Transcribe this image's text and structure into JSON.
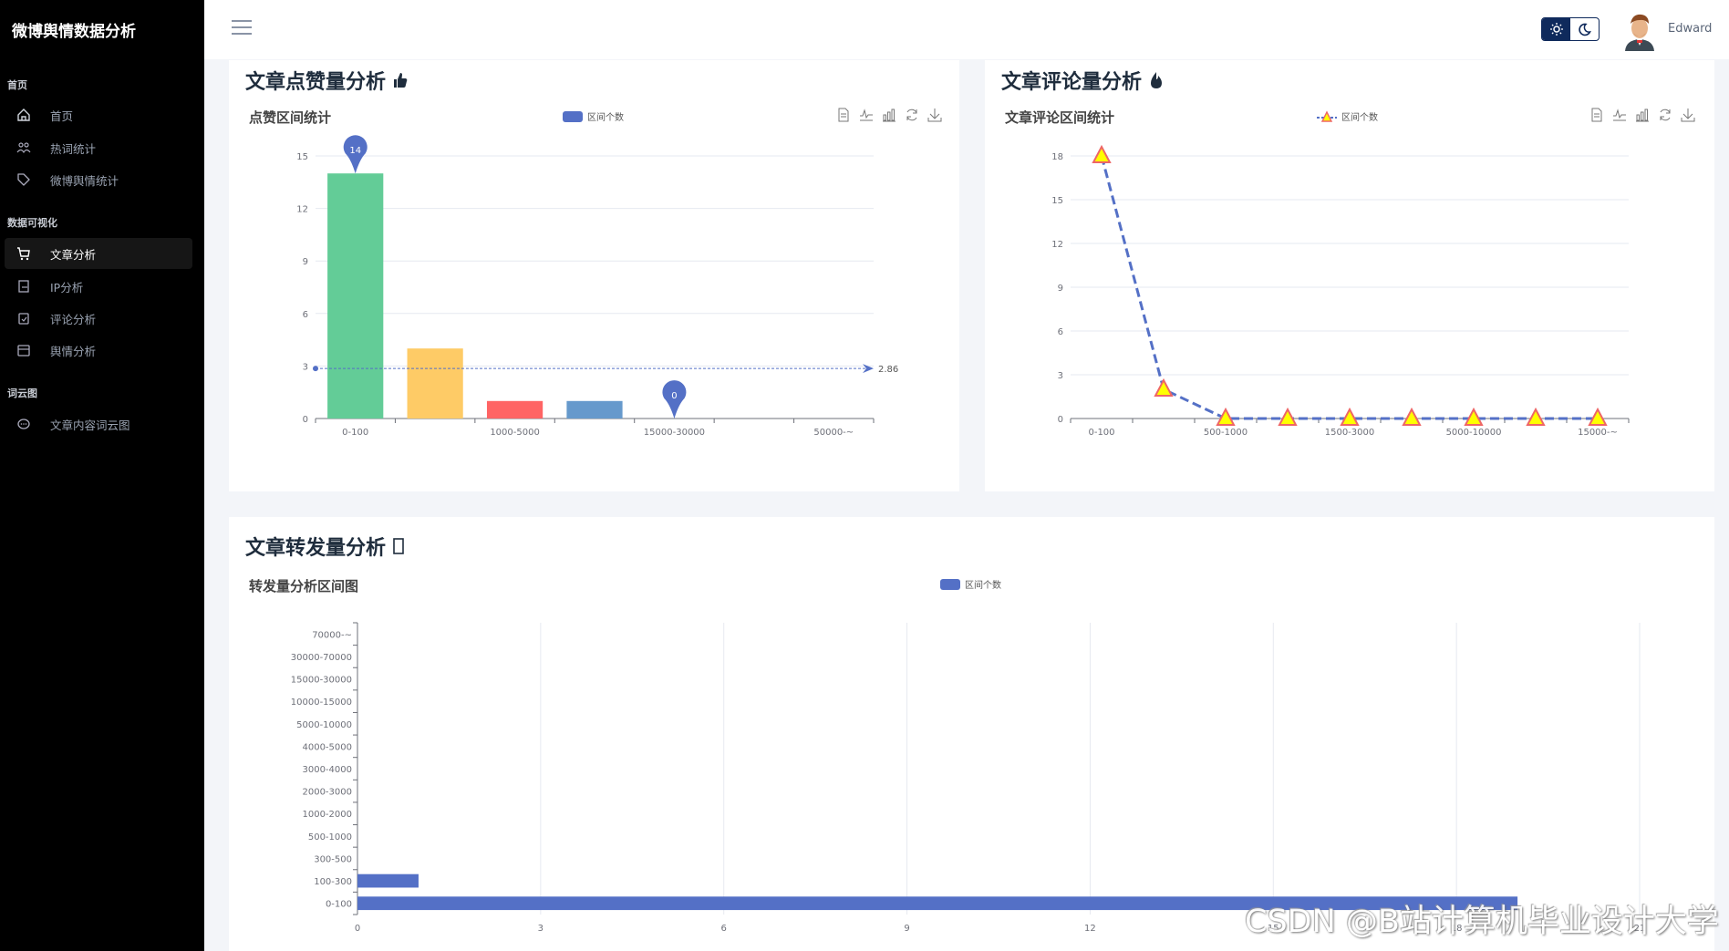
{
  "sidebar": {
    "brand": "微博舆情数据分析",
    "sections": [
      {
        "title": "首页",
        "items": [
          {
            "label": "首页",
            "icon": "home-icon"
          },
          {
            "label": "热词统计",
            "icon": "users-icon"
          },
          {
            "label": "微博舆情统计",
            "icon": "tag-icon"
          }
        ]
      },
      {
        "title": "数据可视化",
        "items": [
          {
            "label": "文章分析",
            "icon": "cart-icon",
            "active": true
          },
          {
            "label": "IP分析",
            "icon": "clipboard-icon"
          },
          {
            "label": "评论分析",
            "icon": "clipboard-check-icon"
          },
          {
            "label": "舆情分析",
            "icon": "calendar-icon"
          }
        ]
      },
      {
        "title": "词云图",
        "items": [
          {
            "label": "文章内容词云图",
            "icon": "chat-icon"
          }
        ]
      }
    ]
  },
  "header": {
    "user_name": "Edward",
    "theme": "light"
  },
  "cards": {
    "likes": {
      "title": "文章点赞量分析",
      "icon": "thumbs-up-icon"
    },
    "comments": {
      "title": "文章评论量分析",
      "icon": "fire-icon"
    },
    "reposts": {
      "title": "文章转发量分析",
      "icon": "missing-glyph-icon"
    }
  },
  "toolbox": [
    "data-view-icon",
    "line-chart-icon",
    "bar-chart-icon",
    "restore-icon",
    "download-icon"
  ],
  "watermark": "CSDN @B站计算机毕业设计大学",
  "chart_data": [
    {
      "type": "bar",
      "title": "点赞区间统计",
      "legend": "区间个数",
      "categories": [
        "0-100",
        "",
        "1000-5000",
        "",
        "15000-30000",
        "",
        "50000-~"
      ],
      "values": [
        14,
        4,
        1,
        1,
        0,
        0,
        0
      ],
      "colors": [
        "#63cc97",
        "#fecb66",
        "#ff6464",
        "#6699cc",
        "#5470c6",
        "#5470c6",
        "#5470c6"
      ],
      "ylim": [
        0,
        15
      ],
      "yticks": [
        0,
        3,
        6,
        9,
        12,
        15
      ],
      "mark_points": [
        {
          "label": "14",
          "category": "0-100",
          "value": 14
        },
        {
          "label": "0",
          "category": "15000-30000",
          "value": 0
        }
      ],
      "mark_line": {
        "label": "2.86",
        "value": 2.86
      },
      "grid": true
    },
    {
      "type": "line",
      "title": "文章评论区间统计",
      "legend": "区间个数",
      "categories": [
        "0-100",
        "",
        "500-1000",
        "",
        "1500-3000",
        "",
        "5000-10000",
        "",
        "15000-~"
      ],
      "values": [
        18,
        2,
        0,
        0,
        0,
        0,
        0,
        0,
        0
      ],
      "ylim": [
        0,
        18
      ],
      "yticks": [
        0,
        3,
        6,
        9,
        12,
        15,
        18
      ],
      "line_style": "dashed",
      "symbol": "triangle",
      "line_color": "#5470c6",
      "symbol_fill": "#ffff00",
      "symbol_stroke": "#ee6666",
      "grid": true
    },
    {
      "type": "bar",
      "orientation": "horizontal",
      "title": "转发量分析区间图",
      "legend": "区间个数",
      "categories": [
        "0-100",
        "100-300",
        "300-500",
        "500-1000",
        "1000-2000",
        "2000-3000",
        "3000-4000",
        "4000-5000",
        "5000-10000",
        "10000-15000",
        "15000-30000",
        "30000-70000",
        "70000-~"
      ],
      "values": [
        19,
        1,
        0,
        0,
        0,
        0,
        0,
        0,
        0,
        0,
        0,
        0,
        0
      ],
      "xlim": [
        0,
        21
      ],
      "xticks": [
        0,
        3,
        6,
        9,
        12,
        15,
        18,
        21
      ],
      "color": "#5470c6",
      "grid": true
    }
  ]
}
